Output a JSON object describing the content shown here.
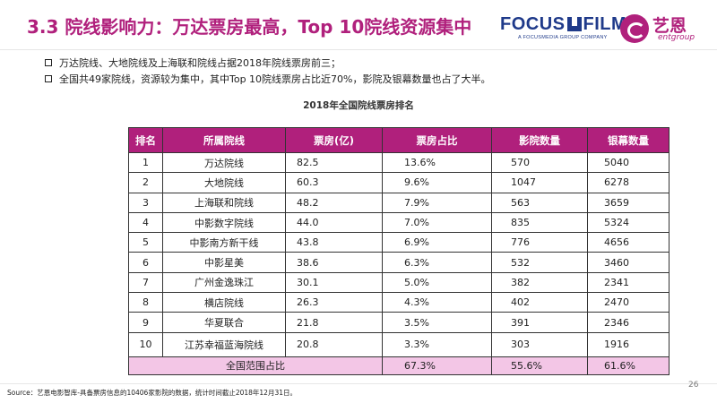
{
  "title": "3.3 院线影响力：万达票房最高，Top 10院线资源集中",
  "logos": {
    "focus": "FOCUS",
    "film": "FILM",
    "focus_sub": "A FOCUSMEDIA GROUP COMPANY",
    "ent_cn": "艺恩",
    "ent_en": "entgroup"
  },
  "bullets": [
    "万达院线、大地院线及上海联和院线占据2018年院线票房前三；",
    "全国共49家院线，资源较为集中，其中Top 10院线票房占比近70%，影院及银幕数量也占了大半。"
  ],
  "table": {
    "title": "2018年全国院线票房排名",
    "headers": [
      "排名",
      "所属院线",
      "票房(亿)",
      "票房占比",
      "影院数量",
      "银幕数量"
    ],
    "rows": [
      [
        "1",
        "万达院线",
        "82.5",
        "13.6%",
        "570",
        "5040"
      ],
      [
        "2",
        "大地院线",
        "60.3",
        "9.6%",
        "1047",
        "6278"
      ],
      [
        "3",
        "上海联和院线",
        "48.2",
        "7.9%",
        "563",
        "3659"
      ],
      [
        "4",
        "中影数字院线",
        "44.0",
        "7.0%",
        "835",
        "5324"
      ],
      [
        "5",
        "中影南方新干线",
        "43.8",
        "6.9%",
        "776",
        "4656"
      ],
      [
        "6",
        "中影星美",
        "38.6",
        "6.3%",
        "532",
        "3460"
      ],
      [
        "7",
        "广州金逸珠江",
        "30.1",
        "5.0%",
        "382",
        "2341"
      ],
      [
        "8",
        "横店院线",
        "26.3",
        "4.3%",
        "402",
        "2470"
      ],
      [
        "9",
        "华夏联合",
        "21.8",
        "3.5%",
        "391",
        "2346"
      ],
      [
        "10",
        "江苏幸福蓝海院线",
        "20.8",
        "3.3%",
        "303",
        "1916"
      ]
    ],
    "footer": {
      "label": "全国范围占比",
      "share": "67.3%",
      "cinemas": "55.6%",
      "screens": "61.6%"
    }
  },
  "source": "Source：艺恩电影智库-具备票房信息的10406家影院的数据，统计时间截止2018年12月31日。",
  "page_number": "26",
  "colors": {
    "accent": "#b0207c",
    "header_bg": "#b0207c",
    "footer_bg": "#f3c6e6",
    "brand_blue": "#1f3a8a"
  }
}
